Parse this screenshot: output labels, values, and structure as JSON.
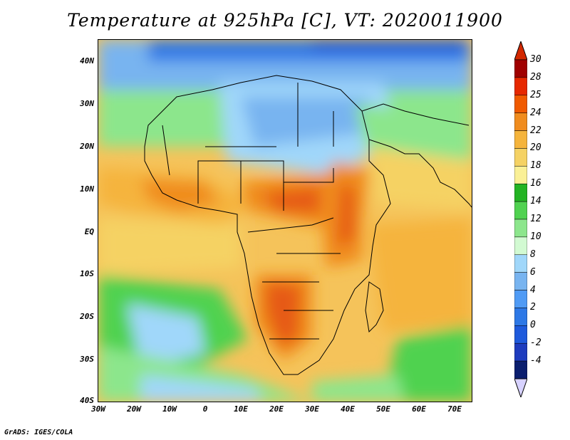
{
  "title": "Temperature at 925hPa [C], VT: 2020011900",
  "credit": "GrADS: IGES/COLA",
  "map": {
    "lat_labels": [
      "40N",
      "30N",
      "20N",
      "10N",
      "EQ",
      "10S",
      "20S",
      "30S",
      "40S"
    ],
    "lon_labels": [
      "30W",
      "20W",
      "10W",
      "0",
      "10E",
      "20E",
      "30E",
      "40E",
      "50E",
      "60E",
      "70E"
    ],
    "lat_range": [
      -40,
      45
    ],
    "lon_range": [
      -30,
      75
    ],
    "variable": "Temperature at 925hPa",
    "unit": "C",
    "valid_time": "2020011900"
  },
  "colorbar": {
    "labels": [
      "30",
      "28",
      "25",
      "24",
      "22",
      "20",
      "18",
      "16",
      "14",
      "12",
      "10",
      "8",
      "6",
      "4",
      "2",
      "0",
      "-2",
      "-4"
    ],
    "colors": [
      "#a00000",
      "#e62800",
      "#f05a00",
      "#f08c1e",
      "#f5b43c",
      "#f5d264",
      "#faf096",
      "#23b423",
      "#50d250",
      "#8ce68c",
      "#d2fad2",
      "#a0d7fa",
      "#78b4f0",
      "#509bf5",
      "#2d78e6",
      "#1e5adc",
      "#1e3cbe",
      "#0a1e6e"
    ],
    "top_color": "#d22800",
    "bottom_color": "#d7d2ff"
  }
}
